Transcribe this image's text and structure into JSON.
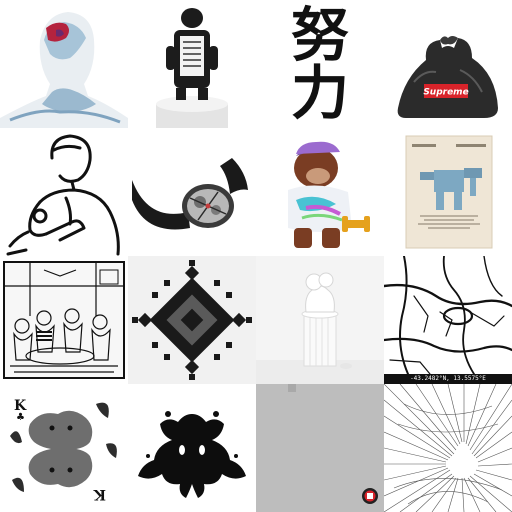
{
  "tiles": [
    {
      "name": "painted-head-bust",
      "text": ""
    },
    {
      "name": "figure-on-pedestal",
      "text": ""
    },
    {
      "name": "kanji-calligraphy",
      "text": "努力"
    },
    {
      "name": "supreme-trash-bag",
      "text": "Supreme"
    },
    {
      "name": "man-line-drawing",
      "text": ""
    },
    {
      "name": "skeleton-watch",
      "text": ""
    },
    {
      "name": "gorilla-figure",
      "text": ""
    },
    {
      "name": "robot-poster",
      "text": ""
    },
    {
      "name": "saloon-comic",
      "text": ""
    },
    {
      "name": "fractal-diamond",
      "text": ""
    },
    {
      "name": "white-bust-sculpture",
      "text": ""
    },
    {
      "name": "city-street-map",
      "text": "-43.2482°N, 13.5575°E"
    },
    {
      "name": "king-of-clubs-card",
      "text": "K"
    },
    {
      "name": "rorschach-inkblot",
      "text": ""
    },
    {
      "name": "grey-blank-canvas",
      "text": ""
    },
    {
      "name": "line-art-tunnel",
      "text": ""
    }
  ],
  "colors": {
    "background": "#ffffff",
    "ink": "#111111",
    "supreme_red": "#d8232a",
    "grey_canvas": "#bdbdbd"
  }
}
